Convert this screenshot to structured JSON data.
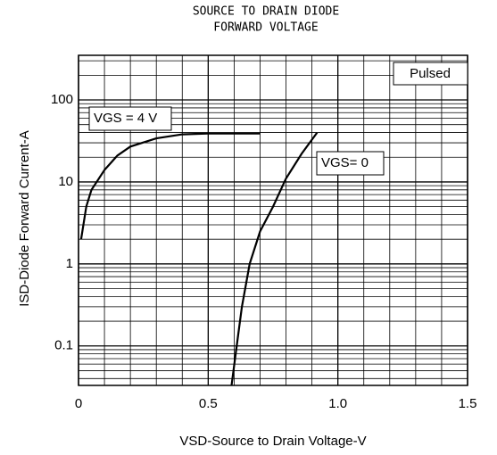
{
  "chart_data": {
    "type": "line",
    "title": [
      "SOURCE TO DRAIN DIODE",
      "FORWARD VOLTAGE"
    ],
    "xlabel": "VSD-Source to Drain Voltage-V",
    "ylabel": "ISD-Diode Forward Current-A",
    "annotation": "Pulsed",
    "ylog": true,
    "grid": true,
    "xlim": [
      0,
      1.5
    ],
    "ylim": [
      0.033,
      350
    ],
    "xticks": [
      0,
      0.5,
      {
        "value": 1.0,
        "label": "1.0"
      },
      1.5
    ],
    "xminorticks": [
      0.1,
      0.2,
      0.3,
      0.4,
      0.6,
      0.7,
      0.8,
      0.9,
      1.1,
      1.2,
      1.3,
      1.4
    ],
    "yticks": [
      0.1,
      1,
      10,
      100
    ],
    "yminorticks": [
      0.04,
      0.05,
      0.06,
      0.07,
      0.08,
      0.09,
      0.2,
      0.3,
      0.4,
      0.5,
      0.6,
      0.7,
      0.8,
      0.9,
      2,
      3,
      4,
      5,
      6,
      7,
      8,
      9,
      20,
      30,
      40,
      50,
      60,
      70,
      80,
      90,
      200,
      300
    ],
    "series": [
      {
        "name": "VGS = 4 V",
        "color": "#000000",
        "x": [
          0.01,
          0.03,
          0.05,
          0.1,
          0.15,
          0.2,
          0.3,
          0.4,
          0.5,
          0.7
        ],
        "values": [
          2,
          5,
          8,
          14,
          21,
          27,
          34,
          38,
          39,
          39
        ]
      },
      {
        "name": "VGS= 0",
        "color": "#000000",
        "x": [
          0.59,
          0.61,
          0.63,
          0.66,
          0.7,
          0.75,
          0.8,
          0.86,
          0.92
        ],
        "values": [
          0.033,
          0.1,
          0.3,
          1,
          2.5,
          5,
          11,
          22,
          40
        ]
      }
    ]
  }
}
